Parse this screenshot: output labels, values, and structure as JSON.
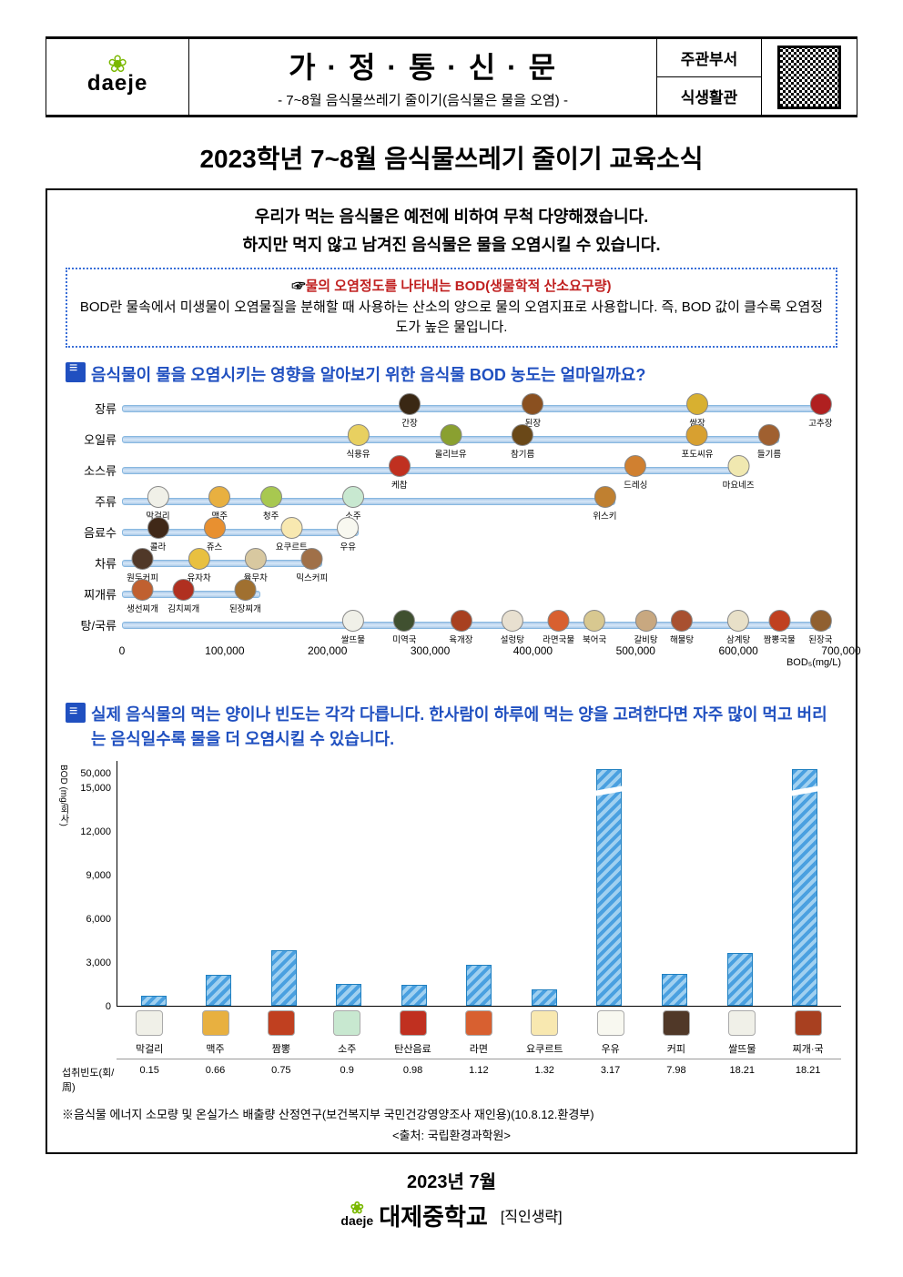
{
  "header": {
    "logo_name": "daeje",
    "title": "가 · 정 · 통 · 신 · 문",
    "subtitle": "- 7~8월 음식물쓰레기 줄이기(음식물은 물을 오염) -",
    "dept_label": "주관부서",
    "dept_value": "식생활관"
  },
  "page_title": "2023학년 7~8월 음식물쓰레기 줄이기 교육소식",
  "intro_line1": "우리가 먹는 음식물은 예전에 비하여 무척 다양해졌습니다.",
  "intro_line2": "하지만 먹지 않고 남겨진 음식물은 물을 오염시킬 수 있습니다.",
  "bod": {
    "prefix": "☞",
    "title_red": "물의 오염정도를 나타내는 BOD(생물학적 산소요구량)",
    "desc": "BOD란 물속에서 미생물이 오염물질을 분해할 때 사용하는 산소의 양으로 물의 오염지표로 사용합니다. 즉, BOD 값이 클수록 오염정도가 높은 물입니다."
  },
  "q1": "음식물이 물을 오염시키는 영향을 알아보기 위한 음식물 BOD 농도는 얼마일까요?",
  "q2": "실제 음식물의 먹는 양이나 빈도는 각각 다릅니다. 한사람이 하루에 먹는 양을 고려한다면 자주 많이 먹고 버리는 음식일수록 물을 더 오염시킬 수 있습니다.",
  "chart1": {
    "x_max": 700000,
    "x_ticks": [
      0,
      100000,
      200000,
      300000,
      400000,
      500000,
      600000,
      700000
    ],
    "x_unit": "BOD₅(mg/L)",
    "rows": [
      {
        "label": "장류",
        "bar": 690000,
        "items": [
          {
            "name": "간장",
            "x": 280000,
            "color": "#3a2814"
          },
          {
            "name": "된장",
            "x": 400000,
            "color": "#8a5020"
          },
          {
            "name": "쌈장",
            "x": 560000,
            "color": "#d8b030"
          },
          {
            "name": "고추장",
            "x": 680000,
            "color": "#b02020"
          }
        ]
      },
      {
        "label": "오일류",
        "bar": 640000,
        "items": [
          {
            "name": "식용유",
            "x": 230000,
            "color": "#e8d060"
          },
          {
            "name": "참기름",
            "x": 390000,
            "color": "#6a4818"
          },
          {
            "name": "올리브유",
            "x": 320000,
            "color": "#8aa030"
          },
          {
            "name": "포도씨유",
            "x": 560000,
            "color": "#d8a030"
          },
          {
            "name": "들기름",
            "x": 630000,
            "color": "#a06030"
          }
        ]
      },
      {
        "label": "소스류",
        "bar": 610000,
        "items": [
          {
            "name": "케찹",
            "x": 270000,
            "color": "#c03020"
          },
          {
            "name": "드레싱",
            "x": 500000,
            "color": "#d08030"
          },
          {
            "name": "마요네즈",
            "x": 600000,
            "color": "#f0e8b0"
          }
        ]
      },
      {
        "label": "주류",
        "bar": 480000,
        "items": [
          {
            "name": "막걸리",
            "x": 35000,
            "color": "#f0f0e8"
          },
          {
            "name": "맥주",
            "x": 95000,
            "color": "#e8b040"
          },
          {
            "name": "청주",
            "x": 145000,
            "color": "#a8c850"
          },
          {
            "name": "소주",
            "x": 225000,
            "color": "#c8e8d0"
          },
          {
            "name": "위스키",
            "x": 470000,
            "color": "#c08030"
          }
        ]
      },
      {
        "label": "음료수",
        "bar": 230000,
        "items": [
          {
            "name": "콜라",
            "x": 35000,
            "color": "#402818"
          },
          {
            "name": "쥬스",
            "x": 90000,
            "color": "#e89030"
          },
          {
            "name": "요쿠르트",
            "x": 165000,
            "color": "#f8e8b0"
          },
          {
            "name": "우유",
            "x": 220000,
            "color": "#f8f8f0"
          }
        ]
      },
      {
        "label": "차류",
        "bar": 195000,
        "items": [
          {
            "name": "원두커피",
            "x": 20000,
            "color": "#503828"
          },
          {
            "name": "유자차",
            "x": 75000,
            "color": "#e8c040"
          },
          {
            "name": "율무차",
            "x": 130000,
            "color": "#d8c8a0"
          },
          {
            "name": "믹스커피",
            "x": 185000,
            "color": "#a07048"
          }
        ]
      },
      {
        "label": "찌개류",
        "bar": 135000,
        "items": [
          {
            "name": "생선찌개",
            "x": 20000,
            "color": "#c06030"
          },
          {
            "name": "김치찌개",
            "x": 60000,
            "color": "#b03020"
          },
          {
            "name": "된장찌개",
            "x": 120000,
            "color": "#a07030"
          }
        ]
      },
      {
        "label": "탕/국류",
        "bar": 690000,
        "items": [
          {
            "name": "쌀뜨물",
            "x": 225000,
            "color": "#f0f0e8"
          },
          {
            "name": "미역국",
            "x": 275000,
            "color": "#405030"
          },
          {
            "name": "육개장",
            "x": 330000,
            "color": "#a84020"
          },
          {
            "name": "설렁탕",
            "x": 380000,
            "color": "#e8e0d0"
          },
          {
            "name": "라면국물",
            "x": 425000,
            "color": "#d86030"
          },
          {
            "name": "북어국",
            "x": 460000,
            "color": "#d8c890"
          },
          {
            "name": "갈비탕",
            "x": 510000,
            "color": "#c8a880"
          },
          {
            "name": "해물탕",
            "x": 545000,
            "color": "#a85030"
          },
          {
            "name": "삼계탕",
            "x": 600000,
            "color": "#e8e0c8"
          },
          {
            "name": "짬뽕국물",
            "x": 640000,
            "color": "#c04020"
          },
          {
            "name": "된장국",
            "x": 680000,
            "color": "#906030"
          }
        ]
      }
    ]
  },
  "chart2": {
    "y_label": "BOD (mg/회사)",
    "y_ticks": [
      0,
      3000,
      6000,
      9000,
      12000,
      15000,
      50000
    ],
    "y_max_disp": 15000,
    "bars": [
      {
        "name": "막걸리",
        "value": 700,
        "freq": "0.15",
        "color": "#f0f0e8"
      },
      {
        "name": "맥주",
        "value": 2100,
        "freq": "0.66",
        "color": "#e8b040"
      },
      {
        "name": "짬뽕",
        "value": 3800,
        "freq": "0.75",
        "color": "#c04020"
      },
      {
        "name": "소주",
        "value": 1500,
        "freq": "0.9",
        "color": "#c8e8d0"
      },
      {
        "name": "탄산음료",
        "value": 1400,
        "freq": "0.98",
        "color": "#c03020"
      },
      {
        "name": "라면",
        "value": 2800,
        "freq": "1.12",
        "color": "#d86030"
      },
      {
        "name": "요쿠르트",
        "value": 1100,
        "freq": "1.32",
        "color": "#f8e8b0"
      },
      {
        "name": "우유",
        "value": 15000,
        "freq": "3.17",
        "color": "#f8f8f0",
        "broken": true
      },
      {
        "name": "커피",
        "value": 2200,
        "freq": "7.98",
        "color": "#503828"
      },
      {
        "name": "쌀뜨물",
        "value": 3600,
        "freq": "18.21",
        "color": "#f0f0e8"
      },
      {
        "name": "찌개·국",
        "value": 50000,
        "freq": "18.21",
        "color": "#a84020",
        "broken": true
      }
    ],
    "freq_label": "섭취빈도(회/周)"
  },
  "footnote": "※음식물 에너지 소모량 및 온실가스 배출량 산정연구(보건복지부 국민건강영양조사 재인용)(10.8.12.환경부)",
  "source": "<출처: 국립환경과학원>",
  "footer": {
    "date": "2023년   7월",
    "school": "대제중학교",
    "suffix": "[직인생략]"
  }
}
